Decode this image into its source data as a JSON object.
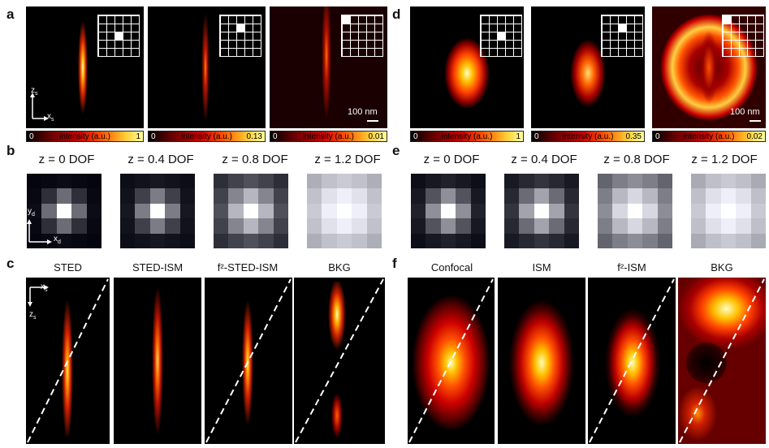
{
  "panel_labels": {
    "a": "a",
    "b": "b",
    "c": "c",
    "d": "d",
    "e": "e",
    "f": "f"
  },
  "colorbars": {
    "a1": {
      "zero": "0",
      "label": "intensity (a.u.)",
      "max": "1"
    },
    "a2": {
      "zero": "0",
      "label": "intensity (a.u.)",
      "max": "0.13"
    },
    "a3": {
      "zero": "0",
      "label": "intensity (a.u.)",
      "max": "0.01"
    },
    "d1": {
      "zero": "0",
      "label": "intensity (a.u.)",
      "max": "1"
    },
    "d2": {
      "zero": "0",
      "label": "intensity (a.u.)",
      "max": "0.35"
    },
    "d3": {
      "zero": "0",
      "label": "intensity (a.u.)",
      "max": "0.02"
    }
  },
  "scalebar_a": "100 nm",
  "scalebar_d": "100 nm",
  "axes": {
    "zs": "z",
    "zs_sub": "s",
    "xs": "x",
    "xs_sub": "s",
    "yd": "y",
    "yd_sub": "d",
    "xd": "x",
    "xd_sub": "d"
  },
  "b_titles": [
    "z = 0 DOF",
    "z = 0.4 DOF",
    "z = 0.8 DOF",
    "z = 1.2 DOF"
  ],
  "e_titles": [
    "z = 0 DOF",
    "z = 0.4 DOF",
    "z = 0.8 DOF",
    "z = 1.2 DOF"
  ],
  "c_titles": [
    "STED",
    "STED-ISM",
    "f²-STED-ISM",
    "BKG"
  ],
  "f_titles": [
    "Confocal",
    "ISM",
    "f²-ISM",
    "BKG"
  ]
}
